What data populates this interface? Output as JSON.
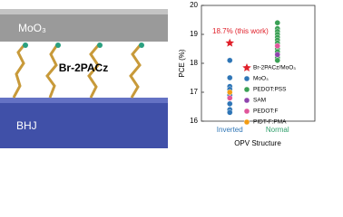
{
  "illustration": {
    "top_layer": "MoO₃",
    "molecule": "Br-2PACz",
    "bottom_layer": "BHJ"
  },
  "chart_data": {
    "type": "scatter",
    "y_label": "PCE (%)",
    "x_label": "OPV Structure",
    "categories": [
      "Inverted",
      "Normal"
    ],
    "category_colors": [
      "#2e75b6",
      "#2e9e6a"
    ],
    "ylim": [
      16,
      20
    ],
    "yticks": [
      16,
      17,
      18,
      19,
      20
    ],
    "annotation": "18.7% (this work)",
    "annotation_color": "#e0202a",
    "series": [
      {
        "name": "Br-2PACz/MoO₃",
        "color": "#e0202a",
        "marker": "star",
        "x": [
          "Inverted"
        ],
        "values": [
          18.7
        ]
      },
      {
        "name": "MoO₃",
        "color": "#2e75b6",
        "marker": "circle",
        "x": [
          "Inverted",
          "Inverted",
          "Inverted",
          "Inverted",
          "Inverted",
          "Inverted",
          "Inverted",
          "Inverted"
        ],
        "values": [
          18.1,
          17.5,
          17.2,
          17.1,
          16.9,
          16.6,
          16.4,
          16.3
        ]
      },
      {
        "name": "PEDOT:PSS",
        "color": "#3aa055",
        "marker": "circle",
        "x": [
          "Normal",
          "Normal",
          "Normal",
          "Normal",
          "Normal",
          "Normal",
          "Normal",
          "Normal",
          "Normal",
          "Normal",
          "Normal",
          "Normal"
        ],
        "values": [
          19.4,
          19.2,
          19.1,
          19.0,
          18.9,
          18.8,
          18.7,
          18.6,
          18.5,
          18.4,
          18.2,
          18.1
        ]
      },
      {
        "name": "SAM",
        "color": "#8e44ad",
        "marker": "circle",
        "x": [
          "Normal"
        ],
        "values": [
          18.3
        ]
      },
      {
        "name": "PEDOT:F",
        "color": "#e0559a",
        "marker": "circle",
        "x": [
          "Inverted",
          "Normal"
        ],
        "values": [
          16.8,
          18.6
        ]
      },
      {
        "name": "PIDT-F:PMA",
        "color": "#f39c12",
        "marker": "circle",
        "x": [
          "Inverted"
        ],
        "values": [
          17.0
        ]
      }
    ]
  }
}
